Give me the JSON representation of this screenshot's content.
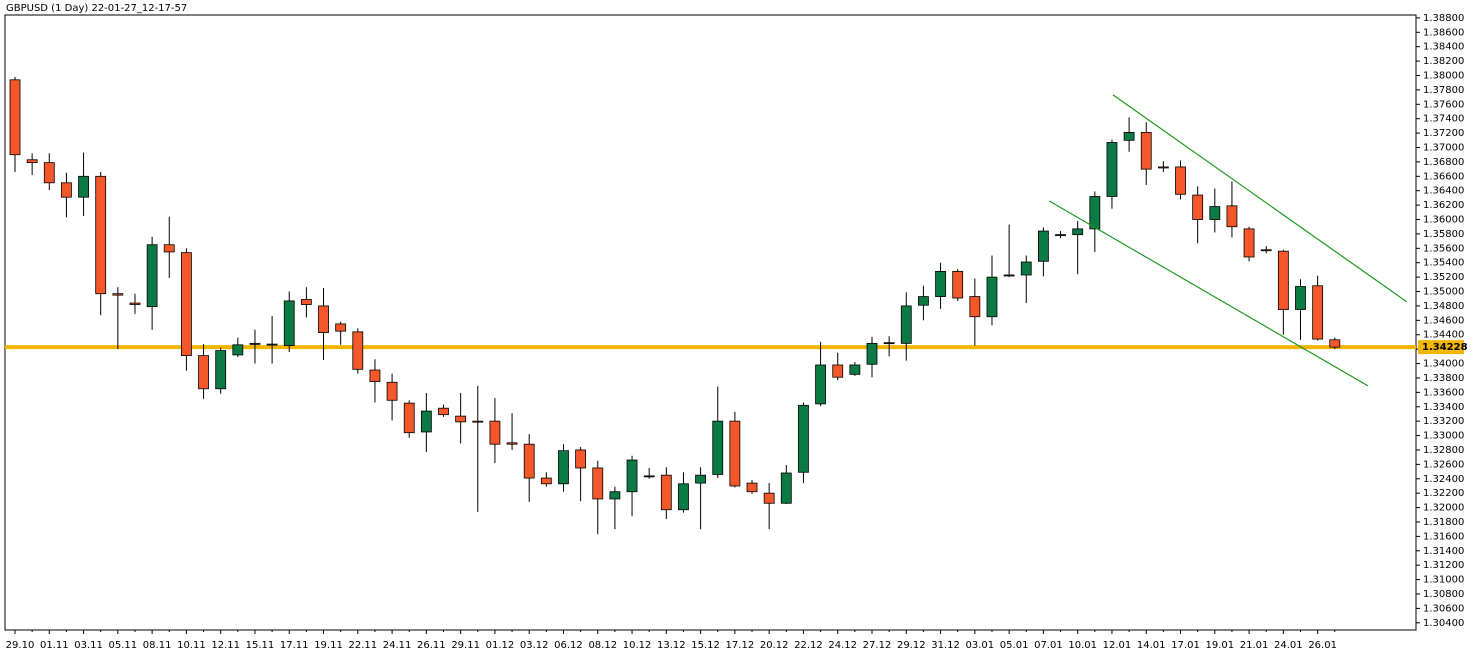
{
  "chart_data": {
    "type": "candlestick",
    "title": "GBPUSD (1 Day) 22-01-27_12-17-57",
    "categories": [
      "29.10",
      null,
      "01.11",
      null,
      "03.11",
      null,
      "05.11",
      null,
      "08.11",
      null,
      "10.11",
      null,
      "12.11",
      null,
      "15.11",
      null,
      "17.11",
      null,
      "19.11",
      null,
      "22.11",
      null,
      "24.11",
      null,
      "26.11",
      null,
      "29.11",
      null,
      "01.12",
      null,
      "03.12",
      null,
      "06.12",
      null,
      "08.12",
      null,
      "10.12",
      null,
      "13.12",
      null,
      "15.12",
      null,
      "17.12",
      null,
      "20.12",
      null,
      "22.12",
      null,
      "24.12",
      null,
      "27.12",
      null,
      "29.12",
      null,
      "31.12",
      null,
      "03.01",
      null,
      "05.01",
      null,
      "07.01",
      null,
      "10.01",
      null,
      "12.01",
      null,
      "14.01",
      null,
      "17.01",
      null,
      "19.01",
      null,
      "21.01",
      null,
      "24.01",
      null,
      "26.01",
      null
    ],
    "open": [
      1.3794,
      1.3683,
      1.3679,
      1.3651,
      1.3631,
      1.366,
      1.3497,
      1.3484,
      1.3479,
      1.3565,
      1.3554,
      1.3411,
      1.3365,
      1.3412,
      1.3428,
      1.3426,
      1.3425,
      1.3489,
      1.348,
      1.3455,
      1.3444,
      1.3391,
      1.3374,
      1.3345,
      1.3305,
      1.3338,
      1.3327,
      1.332,
      1.332,
      1.329,
      1.3288,
      1.3241,
      1.3233,
      1.328,
      1.3255,
      1.3212,
      1.3222,
      1.3243,
      1.3245,
      1.3197,
      1.3234,
      1.3246,
      1.332,
      1.3234,
      1.322,
      1.3206,
      1.3249,
      1.3344,
      1.3398,
      1.3385,
      1.3399,
      1.3428,
      1.3428,
      1.3481,
      1.3493,
      1.3528,
      1.3493,
      1.3465,
      1.3522,
      1.3523,
      1.3542,
      1.3578,
      1.3579,
      1.3587,
      1.3632,
      1.371,
      1.3721,
      1.3673,
      1.3673,
      1.3634,
      1.36,
      1.3619,
      1.3587,
      1.3558,
      1.3556,
      1.3475,
      1.3508,
      1.3433
    ],
    "high": [
      1.3798,
      1.3692,
      1.3692,
      1.3665,
      1.3693,
      1.3666,
      1.3506,
      1.3497,
      1.3576,
      1.3604,
      1.356,
      1.3427,
      1.3422,
      1.3436,
      1.3447,
      1.3466,
      1.35,
      1.3506,
      1.3505,
      1.3458,
      1.3449,
      1.3406,
      1.3386,
      1.3349,
      1.3359,
      1.3343,
      1.3359,
      1.3369,
      1.3352,
      1.3331,
      1.3302,
      1.3249,
      1.3288,
      1.3284,
      1.3265,
      1.3229,
      1.3272,
      1.3255,
      1.3256,
      1.3249,
      1.3256,
      1.3368,
      1.3333,
      1.3238,
      1.3234,
      1.3259,
      1.3346,
      1.343,
      1.3415,
      1.3402,
      1.3437,
      1.3438,
      1.3499,
      1.3508,
      1.354,
      1.3531,
      1.3518,
      1.355,
      1.3593,
      1.355,
      1.3589,
      1.3584,
      1.3598,
      1.3639,
      1.3711,
      1.3742,
      1.3735,
      1.3681,
      1.3682,
      1.3646,
      1.3643,
      1.3653,
      1.359,
      1.3563,
      1.3558,
      1.3517,
      1.3522,
      1.3436
    ],
    "low": [
      1.3666,
      1.3662,
      1.3641,
      1.3603,
      1.3605,
      1.3467,
      1.342,
      1.3469,
      1.3447,
      1.3519,
      1.339,
      1.3351,
      1.3358,
      1.3409,
      1.34,
      1.34,
      1.3416,
      1.3464,
      1.3405,
      1.3426,
      1.3386,
      1.3346,
      1.3321,
      1.3297,
      1.3277,
      1.3326,
      1.3289,
      1.3194,
      1.3262,
      1.328,
      1.3208,
      1.3229,
      1.3222,
      1.3209,
      1.3163,
      1.317,
      1.3188,
      1.324,
      1.3184,
      1.3193,
      1.317,
      1.3241,
      1.3228,
      1.3219,
      1.317,
      1.3205,
      1.3234,
      1.3341,
      1.3377,
      1.3383,
      1.3381,
      1.341,
      1.3404,
      1.346,
      1.3476,
      1.3487,
      1.3425,
      1.3453,
      1.352,
      1.3484,
      1.3521,
      1.3574,
      1.3524,
      1.3555,
      1.3615,
      1.3694,
      1.3648,
      1.3666,
      1.3628,
      1.3567,
      1.3582,
      1.3575,
      1.3542,
      1.3553,
      1.344,
      1.3433,
      1.3432,
      1.342
    ],
    "close": [
      1.369,
      1.3679,
      1.3651,
      1.3631,
      1.366,
      1.3497,
      1.3495,
      1.3482,
      1.3565,
      1.3555,
      1.3411,
      1.3365,
      1.3418,
      1.3426,
      1.3427,
      1.3427,
      1.3487,
      1.3482,
      1.3443,
      1.3445,
      1.3392,
      1.3375,
      1.3349,
      1.3304,
      1.3334,
      1.3329,
      1.3319,
      1.3319,
      1.3288,
      1.3288,
      1.3241,
      1.3233,
      1.3279,
      1.3255,
      1.3212,
      1.3222,
      1.3266,
      1.3244,
      1.3197,
      1.3233,
      1.3245,
      1.332,
      1.323,
      1.3222,
      1.3206,
      1.3248,
      1.3342,
      1.3398,
      1.3381,
      1.3398,
      1.3428,
      1.3429,
      1.348,
      1.3493,
      1.3528,
      1.3491,
      1.3465,
      1.352,
      1.3523,
      1.3541,
      1.3584,
      1.3579,
      1.3587,
      1.3632,
      1.3707,
      1.3721,
      1.367,
      1.3672,
      1.3635,
      1.36,
      1.3618,
      1.359,
      1.3548,
      1.3557,
      1.3475,
      1.3507,
      1.3434,
      1.34228
    ],
    "up_color": "#0b7a45",
    "down_color": "#f4582a",
    "price_level": 1.34228,
    "level_color": "#f2b600",
    "trendlines": [
      {
        "x": [
          64.06,
          81.2
        ],
        "y": [
          1.37731,
          1.34857
        ],
        "color": "#1f9a1f"
      },
      {
        "x": [
          60.33,
          78.94
        ],
        "y": [
          1.36259,
          1.3369
        ],
        "color": "#1f9a1f"
      }
    ],
    "ylim": [
      1.303,
      1.3884
    ],
    "yticks": [
      {
        "value": 1.388,
        "label": "1.38800"
      },
      {
        "value": 1.386,
        "label": "1.38600"
      },
      {
        "value": 1.384,
        "label": "1.38400"
      },
      {
        "value": 1.382,
        "label": "1.38200"
      },
      {
        "value": 1.38,
        "label": "1.38000"
      },
      {
        "value": 1.378,
        "label": "1.37800"
      },
      {
        "value": 1.376,
        "label": "1.37600"
      },
      {
        "value": 1.374,
        "label": "1.37400"
      },
      {
        "value": 1.372,
        "label": "1.37200"
      },
      {
        "value": 1.37,
        "label": "1.37000"
      },
      {
        "value": 1.368,
        "label": "1.36800"
      },
      {
        "value": 1.366,
        "label": "1.36600"
      },
      {
        "value": 1.364,
        "label": "1.36400"
      },
      {
        "value": 1.362,
        "label": "1.36200"
      },
      {
        "value": 1.36,
        "label": "1.36000"
      },
      {
        "value": 1.358,
        "label": "1.35800"
      },
      {
        "value": 1.356,
        "label": "1.35600"
      },
      {
        "value": 1.354,
        "label": "1.35400"
      },
      {
        "value": 1.352,
        "label": "1.35200"
      },
      {
        "value": 1.35,
        "label": "1.35000"
      },
      {
        "value": 1.348,
        "label": "1.34800"
      },
      {
        "value": 1.346,
        "label": "1.34600"
      },
      {
        "value": 1.344,
        "label": "1.34400"
      },
      {
        "value": 1.342,
        "label": "1.34200"
      },
      {
        "value": 1.34,
        "label": "1.34000"
      },
      {
        "value": 1.338,
        "label": "1.33800"
      },
      {
        "value": 1.336,
        "label": "1.33600"
      },
      {
        "value": 1.334,
        "label": "1.33400"
      },
      {
        "value": 1.332,
        "label": "1.33200"
      },
      {
        "value": 1.33,
        "label": "1.33000"
      },
      {
        "value": 1.328,
        "label": "1.32800"
      },
      {
        "value": 1.326,
        "label": "1.32600"
      },
      {
        "value": 1.324,
        "label": "1.32400"
      },
      {
        "value": 1.322,
        "label": "1.32200"
      },
      {
        "value": 1.32,
        "label": "1.32000"
      },
      {
        "value": 1.318,
        "label": "1.31800"
      },
      {
        "value": 1.316,
        "label": "1.31600"
      },
      {
        "value": 1.314,
        "label": "1.31400"
      },
      {
        "value": 1.312,
        "label": "1.31200"
      },
      {
        "value": 1.31,
        "label": "1.31000"
      },
      {
        "value": 1.308,
        "label": "1.30800"
      },
      {
        "value": 1.306,
        "label": "1.30600"
      },
      {
        "value": 1.304,
        "label": "1.30400"
      }
    ]
  }
}
